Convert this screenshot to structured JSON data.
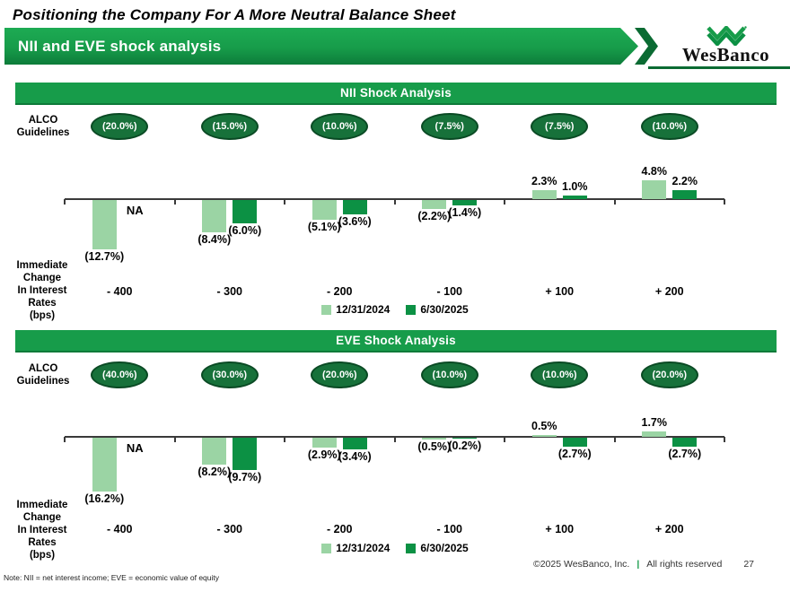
{
  "page": {
    "title": "Positioning the Company For A More Neutral Balance Sheet",
    "banner": "NII and EVE shock analysis",
    "logo_text": "WesBanco",
    "note": "Note: NII = net interest income; EVE = economic value of equity",
    "footer": {
      "copyright": "©2025 WesBanco, Inc.",
      "separator": "|",
      "rights": "All rights reserved",
      "page_number": "27"
    }
  },
  "labels": {
    "alco": "ALCO\nGuidelines",
    "rate_axis": "Immediate\nChange\nIn Interest\nRates\n(bps)"
  },
  "colors": {
    "brand_green": "#179C4A",
    "banner_echo_green": "#0B6B33",
    "oval_fill": "#17713A",
    "oval_border": "#0A4A24",
    "bar_12_31_2024": "#9BD4A4",
    "bar_6_30_2025": "#0C9144",
    "axis": "#3A3A3A"
  },
  "chart_data": [
    {
      "type": "bar",
      "title": "NII Shock Analysis",
      "categories": [
        "- 400",
        "- 300",
        "- 200",
        "- 100",
        "+ 100",
        "+ 200"
      ],
      "alco_guidelines": [
        "(20.0%)",
        "(15.0%)",
        "(10.0%)",
        "(7.5%)",
        "(7.5%)",
        "(10.0%)"
      ],
      "series": [
        {
          "name": "12/31/2024",
          "values": [
            -12.7,
            -8.4,
            -5.1,
            -2.2,
            2.3,
            4.8
          ],
          "labels": [
            "(12.7%)",
            "(8.4%)",
            "(5.1%)",
            "(2.2%)",
            "2.3%",
            "4.8%"
          ]
        },
        {
          "name": "6/30/2025",
          "values": [
            null,
            -6.0,
            -3.6,
            -1.4,
            1.0,
            2.2
          ],
          "labels": [
            "NA",
            "(6.0%)",
            "(3.6%)",
            "(1.4%)",
            "1.0%",
            "2.2%"
          ]
        }
      ],
      "xlabel": "Immediate Change In Interest Rates (bps)",
      "unit": "percent",
      "value_format": "negatives shown in parentheses",
      "legend_position": "bottom",
      "grid": false
    },
    {
      "type": "bar",
      "title": "EVE Shock Analysis",
      "categories": [
        "- 400",
        "- 300",
        "- 200",
        "- 100",
        "+ 100",
        "+ 200"
      ],
      "alco_guidelines": [
        "(40.0%)",
        "(30.0%)",
        "(20.0%)",
        "(10.0%)",
        "(10.0%)",
        "(20.0%)"
      ],
      "series": [
        {
          "name": "12/31/2024",
          "values": [
            -16.2,
            -8.2,
            -2.9,
            -0.5,
            0.5,
            1.7
          ],
          "labels": [
            "(16.2%)",
            "(8.2%)",
            "(2.9%)",
            "(0.5%)",
            "0.5%",
            "1.7%"
          ]
        },
        {
          "name": "6/30/2025",
          "values": [
            null,
            -9.7,
            -3.4,
            -0.2,
            -2.7,
            -2.7
          ],
          "labels": [
            "NA",
            "(9.7%)",
            "(3.4%)",
            "(0.2%)",
            "(2.7%)",
            "(2.7%)"
          ]
        }
      ],
      "xlabel": "Immediate Change In Interest Rates (bps)",
      "unit": "percent",
      "value_format": "negatives shown in parentheses",
      "legend_position": "bottom",
      "grid": false
    }
  ]
}
